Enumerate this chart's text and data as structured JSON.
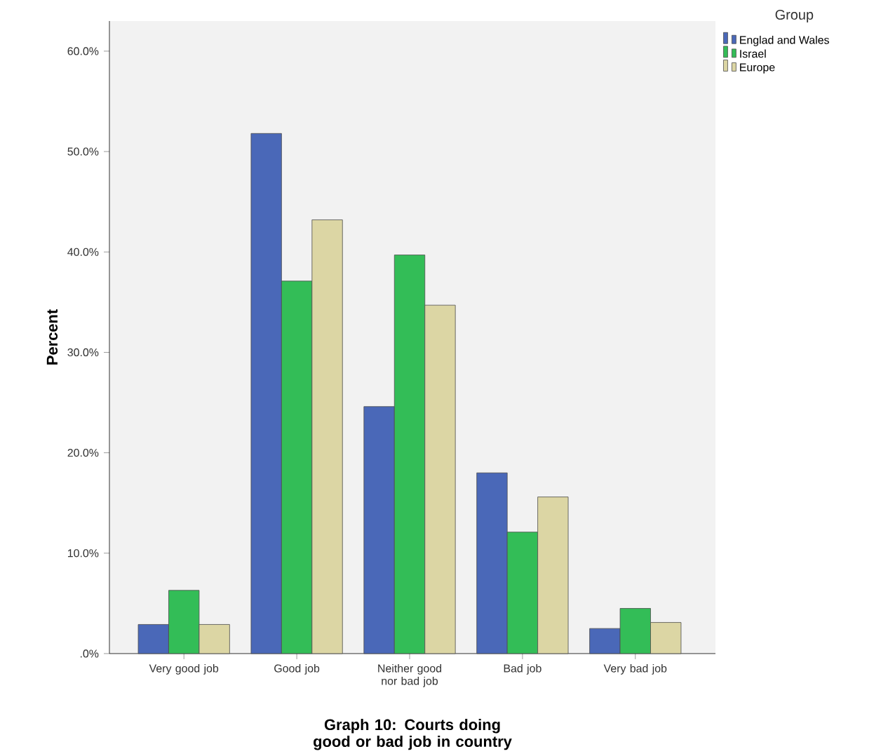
{
  "chart_data": {
    "type": "bar",
    "title": "Graph 10: Courts doing good or bad job in country",
    "ylabel": "Percent",
    "legend_title": "Group",
    "legend": "right",
    "categories": [
      "Very good job",
      "Good job",
      "Neither good nor bad job",
      "Bad job",
      "Very bad job"
    ],
    "series": [
      {
        "name": "Englad and Wales",
        "color": "#4a68b8",
        "values": [
          2.9,
          51.8,
          24.6,
          18.0,
          2.5
        ]
      },
      {
        "name": "Israel",
        "color": "#33bd57",
        "values": [
          6.3,
          37.1,
          39.7,
          12.1,
          4.5
        ]
      },
      {
        "name": "Europe",
        "color": "#dcd6a4",
        "values": [
          2.9,
          43.2,
          34.7,
          15.6,
          3.1
        ]
      }
    ],
    "ylim": [
      0,
      63
    ],
    "yticks": [
      {
        "value": 0,
        "label": ".0%"
      },
      {
        "value": 10,
        "label": "10.0%"
      },
      {
        "value": 20,
        "label": "20.0%"
      },
      {
        "value": 30,
        "label": "30.0%"
      },
      {
        "value": 40,
        "label": "40.0%"
      },
      {
        "value": 50,
        "label": "50.0%"
      },
      {
        "value": 60,
        "label": "60.0%"
      }
    ],
    "grid": false
  }
}
